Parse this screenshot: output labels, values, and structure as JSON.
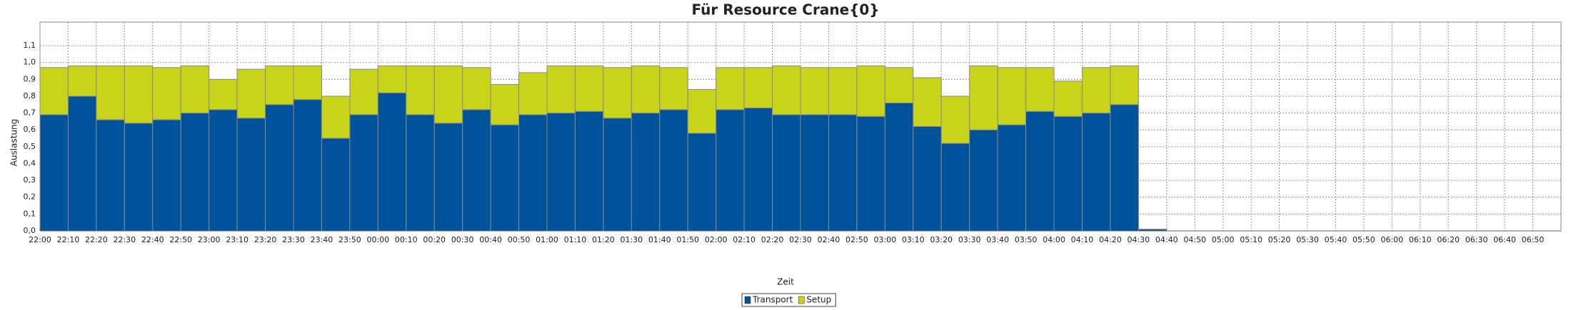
{
  "chart_data": {
    "type": "stacked_bar",
    "title": "Für Resource Crane{0}",
    "xlabel": "Zeit",
    "ylabel": "Auslastung",
    "categories": [
      "22:00",
      "22:10",
      "22:20",
      "22:30",
      "22:40",
      "22:50",
      "23:00",
      "23:10",
      "23:20",
      "23:30",
      "23:40",
      "23:50",
      "00:00",
      "00:10",
      "00:20",
      "00:30",
      "00:40",
      "00:50",
      "01:00",
      "01:10",
      "01:20",
      "01:30",
      "01:40",
      "01:50",
      "02:00",
      "02:10",
      "02:20",
      "02:30",
      "02:40",
      "02:50",
      "03:00",
      "03:10",
      "03:20",
      "03:30",
      "03:40",
      "03:50",
      "04:00",
      "04:10",
      "04:20",
      "04:30",
      "04:40",
      "04:50",
      "05:00",
      "05:10",
      "05:20",
      "05:30",
      "05:40",
      "05:50",
      "06:00",
      "06:10",
      "06:20",
      "06:30",
      "06:40",
      "06:50"
    ],
    "series": [
      {
        "name": "Transport",
        "color": "#00529b",
        "values": [
          0.69,
          0.8,
          0.66,
          0.64,
          0.66,
          0.7,
          0.72,
          0.67,
          0.75,
          0.78,
          0.55,
          0.69,
          0.82,
          0.69,
          0.64,
          0.72,
          0.63,
          0.69,
          0.7,
          0.71,
          0.67,
          0.7,
          0.72,
          0.58,
          0.72,
          0.73,
          0.69,
          0.69,
          0.69,
          0.68,
          0.76,
          0.62,
          0.52,
          0.6,
          0.63,
          0.71,
          0.68,
          0.7,
          0.75,
          0.01,
          null,
          null,
          null,
          null,
          null,
          null,
          null,
          null,
          null,
          null,
          null,
          null,
          null,
          null
        ]
      },
      {
        "name": "Setup",
        "color": "#c8d41a",
        "values": [
          0.28,
          0.18,
          0.32,
          0.34,
          0.31,
          0.28,
          0.18,
          0.29,
          0.23,
          0.2,
          0.25,
          0.27,
          0.16,
          0.29,
          0.34,
          0.25,
          0.24,
          0.25,
          0.28,
          0.27,
          0.3,
          0.28,
          0.25,
          0.26,
          0.25,
          0.24,
          0.29,
          0.28,
          0.28,
          0.3,
          0.21,
          0.29,
          0.28,
          0.38,
          0.34,
          0.26,
          0.21,
          0.27,
          0.23,
          0,
          null,
          null,
          null,
          null,
          null,
          null,
          null,
          null,
          null,
          null,
          null,
          null,
          null,
          null
        ]
      }
    ],
    "ylim": [
      0,
      1.24
    ],
    "yticks": [
      {
        "value": 0,
        "label": "0,0"
      },
      {
        "value": 0.1,
        "label": "0,1"
      },
      {
        "value": 0.2,
        "label": "0,2"
      },
      {
        "value": 0.3,
        "label": "0,3"
      },
      {
        "value": 0.4,
        "label": "0,4"
      },
      {
        "value": 0.5,
        "label": "0,5"
      },
      {
        "value": 0.6,
        "label": "0,6"
      },
      {
        "value": 0.7,
        "label": "0,7"
      },
      {
        "value": 0.8,
        "label": "0,8"
      },
      {
        "value": 0.9,
        "label": "0,9"
      },
      {
        "value": 1.0,
        "label": "1,0"
      },
      {
        "value": 1.1,
        "label": "1,1"
      }
    ],
    "grid": true,
    "legend": "bottom"
  }
}
